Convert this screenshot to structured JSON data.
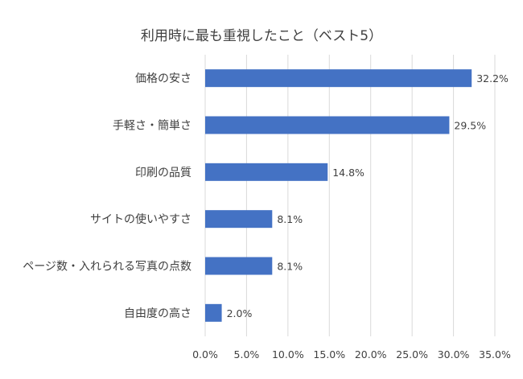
{
  "chart_data": {
    "type": "bar",
    "orientation": "horizontal",
    "title": "利用時に最も重視したこと（ベスト5）",
    "categories": [
      "価格の安さ",
      "手軽さ・簡単さ",
      "印刷の品質",
      "サイトの使いやすさ",
      "ページ数・入れられる写真の点数",
      "自由度の高さ"
    ],
    "values": [
      32.2,
      29.5,
      14.8,
      8.1,
      8.1,
      2.0
    ],
    "data_labels": [
      "32.2%",
      "29.5%",
      "14.8%",
      "8.1%",
      "8.1%",
      "2.0%"
    ],
    "x_ticks": [
      "0.0%",
      "5.0%",
      "10.0%",
      "15.0%",
      "20.0%",
      "25.0%",
      "30.0%",
      "35.0%"
    ],
    "xlim": [
      0,
      35
    ],
    "xlabel": "",
    "ylabel": "",
    "grid": true,
    "legend": "none",
    "bar_color": "#4472c4"
  }
}
